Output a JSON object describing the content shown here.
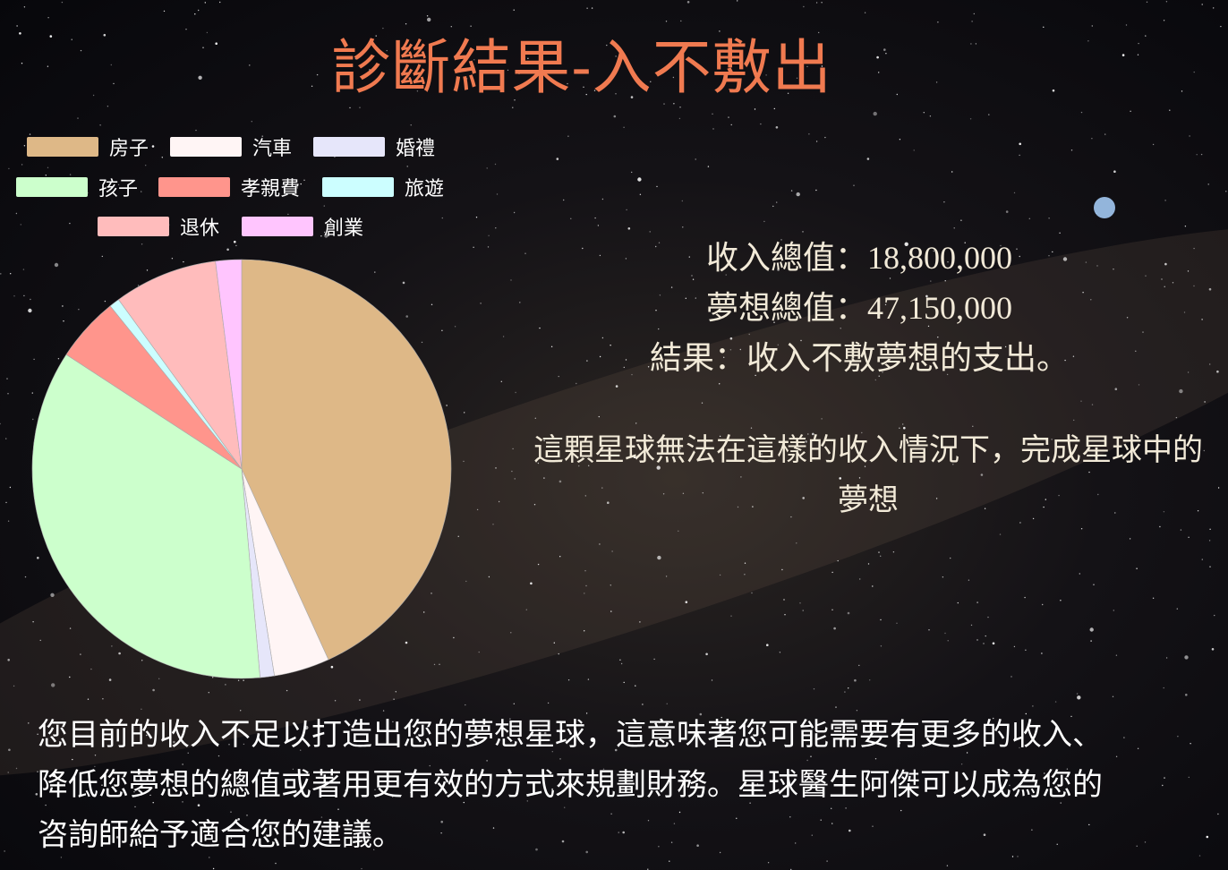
{
  "title": "診斷結果-入不敷出",
  "summary": {
    "income": "收入總值：18,800,000",
    "dreams": "夢想總值：47,150,000",
    "result": "結果：收入不敷夢想的支出。"
  },
  "note": "這顆星球無法在這樣的收入情況下，完成星球中的夢想",
  "advice": "您目前的收入不足以打造出您的夢想星球，這意味著您可能需要有更多的收入、降低您夢想的總值或著用更有效的方式來規劃財務。星球醫生阿傑可以成為您的咨詢師給予適合您的建議。",
  "chart_data": {
    "type": "pie",
    "title": "",
    "categories": [
      "房子",
      "汽車",
      "婚禮",
      "孩子",
      "孝親費",
      "旅遊",
      "退休",
      "創業"
    ],
    "values": [
      43.2,
      4.3,
      1.1,
      35.6,
      5.0,
      0.8,
      8.0,
      2.0
    ],
    "colors": [
      "#deb887",
      "#fff5f5",
      "#e6e6fa",
      "#ccffcc",
      "#ff958c",
      "#ccfeff",
      "#ffbcbc",
      "#ffc5fe"
    ],
    "legend_position": "top-left"
  }
}
